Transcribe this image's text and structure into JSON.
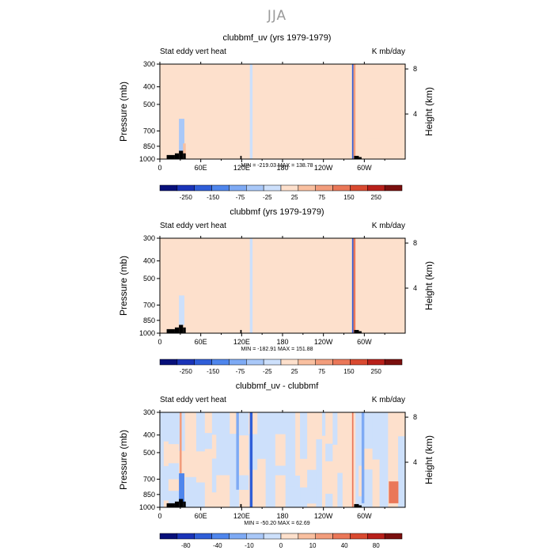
{
  "figure": {
    "title": "JJA"
  },
  "colors": {
    "land": "#000000",
    "frame": "#000000",
    "panels_1_2_scale": [
      "#08107a",
      "#1a34b8",
      "#2f5ed8",
      "#4f86ec",
      "#7eaaf4",
      "#a9c8f8",
      "#cde0fb",
      "#fde0cc",
      "#f9c0a0",
      "#f29d7c",
      "#ea7758",
      "#d94a30",
      "#b8201a",
      "#7a0f0e"
    ],
    "panel_3_scale": [
      "#08107a",
      "#1a34b8",
      "#2f5ed8",
      "#4f86ec",
      "#7eaaf4",
      "#a9c8f8",
      "#cde0fb",
      "#fde0cc",
      "#f9c0a0",
      "#f29d7c",
      "#ea7758",
      "#d94a30",
      "#b8201a",
      "#7a0f0e"
    ]
  },
  "chart_data": [
    {
      "type": "heatmap",
      "title": "clubbmf_uv (yrs 1979-1979)",
      "left_label": "Stat eddy vert heat",
      "right_label": "K mb/day",
      "ylabel": "Pressure (mb)",
      "y2label": "Height (km)",
      "xticks": [
        "0",
        "60E",
        "120E",
        "180",
        "120W",
        "60W"
      ],
      "xtick_lon": [
        0,
        60,
        120,
        180,
        240,
        300
      ],
      "xlim": [
        0,
        360
      ],
      "yticks": [
        "300",
        "400",
        "500",
        "700",
        "850",
        "1000"
      ],
      "ytick_p": [
        300,
        400,
        500,
        700,
        850,
        1000
      ],
      "ylim": [
        1000,
        300
      ],
      "y2ticks": [
        "4",
        "8"
      ],
      "y2tick_km": [
        4,
        8
      ],
      "stats": "MIN = -219.03   MAX = 138.78",
      "colorbar": {
        "labels": [
          "-250",
          "-150",
          "-75",
          "-25",
          "25",
          "75",
          "150",
          "250"
        ],
        "levels": [
          -300,
          -250,
          -200,
          -150,
          -100,
          -75,
          -50,
          -25,
          25,
          50,
          75,
          100,
          150,
          200,
          250,
          300
        ]
      },
      "features": [
        {
          "lon_from": 132,
          "lon_to": 136,
          "p_from": 300,
          "p_to": 1000,
          "value": -30
        },
        {
          "lon_from": 282,
          "lon_to": 284,
          "p_from": 300,
          "p_to": 1000,
          "value": -180
        },
        {
          "lon_from": 284,
          "lon_to": 287,
          "p_from": 300,
          "p_to": 1000,
          "value": 90
        },
        {
          "lon_from": 28,
          "lon_to": 36,
          "p_from": 600,
          "p_to": 900,
          "value": -60
        },
        {
          "lon_from": 34,
          "lon_to": 38,
          "p_from": 820,
          "p_to": 950,
          "value": 60
        }
      ]
    },
    {
      "type": "heatmap",
      "title": "clubbmf (yrs 1979-1979)",
      "left_label": "Stat eddy vert heat",
      "right_label": "K mb/day",
      "ylabel": "Pressure (mb)",
      "y2label": "Height (km)",
      "xticks": [
        "0",
        "60E",
        "120E",
        "180",
        "120W",
        "60W"
      ],
      "xtick_lon": [
        0,
        60,
        120,
        180,
        240,
        300
      ],
      "xlim": [
        0,
        360
      ],
      "yticks": [
        "300",
        "400",
        "500",
        "700",
        "850",
        "1000"
      ],
      "ytick_p": [
        300,
        400,
        500,
        700,
        850,
        1000
      ],
      "ylim": [
        1000,
        300
      ],
      "y2ticks": [
        "4",
        "8"
      ],
      "y2tick_km": [
        4,
        8
      ],
      "stats": "MIN = -182.91   MAX = 151.88",
      "colorbar": {
        "labels": [
          "-250",
          "-150",
          "-75",
          "-25",
          "25",
          "75",
          "150",
          "250"
        ],
        "levels": [
          -300,
          -250,
          -200,
          -150,
          -100,
          -75,
          -50,
          -25,
          25,
          50,
          75,
          100,
          150,
          200,
          250,
          300
        ]
      },
      "features": [
        {
          "lon_from": 132,
          "lon_to": 136,
          "p_from": 300,
          "p_to": 1000,
          "value": -30
        },
        {
          "lon_from": 282,
          "lon_to": 284,
          "p_from": 300,
          "p_to": 1000,
          "value": -160
        },
        {
          "lon_from": 284,
          "lon_to": 287,
          "p_from": 300,
          "p_to": 1000,
          "value": 100
        },
        {
          "lon_from": 28,
          "lon_to": 36,
          "p_from": 620,
          "p_to": 900,
          "value": -40
        }
      ]
    },
    {
      "type": "heatmap",
      "title": "clubbmf_uv - clubbmf",
      "left_label": "Stat eddy vert heat",
      "right_label": "K mb/day",
      "ylabel": "Pressure (mb)",
      "y2label": "Height (km)",
      "xticks": [
        "0",
        "60E",
        "120E",
        "180",
        "120W",
        "60W"
      ],
      "xtick_lon": [
        0,
        60,
        120,
        180,
        240,
        300
      ],
      "xlim": [
        0,
        360
      ],
      "yticks": [
        "300",
        "400",
        "500",
        "700",
        "850",
        "1000"
      ],
      "ytick_p": [
        300,
        400,
        500,
        700,
        850,
        1000
      ],
      "ylim": [
        1000,
        300
      ],
      "y2ticks": [
        "4",
        "8"
      ],
      "y2tick_km": [
        4,
        8
      ],
      "stats": "MIN = -50.20   MAX =  62.69",
      "colorbar": {
        "labels": [
          "-80",
          "-40",
          "-10",
          "0",
          "10",
          "40",
          "80"
        ],
        "levels": [
          -100,
          -80,
          -60,
          -40,
          -20,
          -10,
          -5,
          0,
          5,
          10,
          20,
          40,
          60,
          80,
          100
        ]
      },
      "features": [
        {
          "lon_from": 132,
          "lon_to": 136,
          "p_from": 300,
          "p_to": 1000,
          "value": -45
        },
        {
          "lon_from": 112,
          "lon_to": 116,
          "p_from": 300,
          "p_to": 800,
          "value": -12
        },
        {
          "lon_from": 29,
          "lon_to": 32,
          "p_from": 300,
          "p_to": 1000,
          "value": 12
        },
        {
          "lon_from": 282,
          "lon_to": 284,
          "p_from": 300,
          "p_to": 1000,
          "value": 25
        },
        {
          "lon_from": 296,
          "lon_to": 300,
          "p_from": 300,
          "p_to": 950,
          "value": -18
        },
        {
          "lon_from": 28,
          "lon_to": 36,
          "p_from": 650,
          "p_to": 950,
          "value": -30
        },
        {
          "lon_from": 336,
          "lon_to": 350,
          "p_from": 720,
          "p_to": 950,
          "value": 30
        }
      ]
    }
  ]
}
